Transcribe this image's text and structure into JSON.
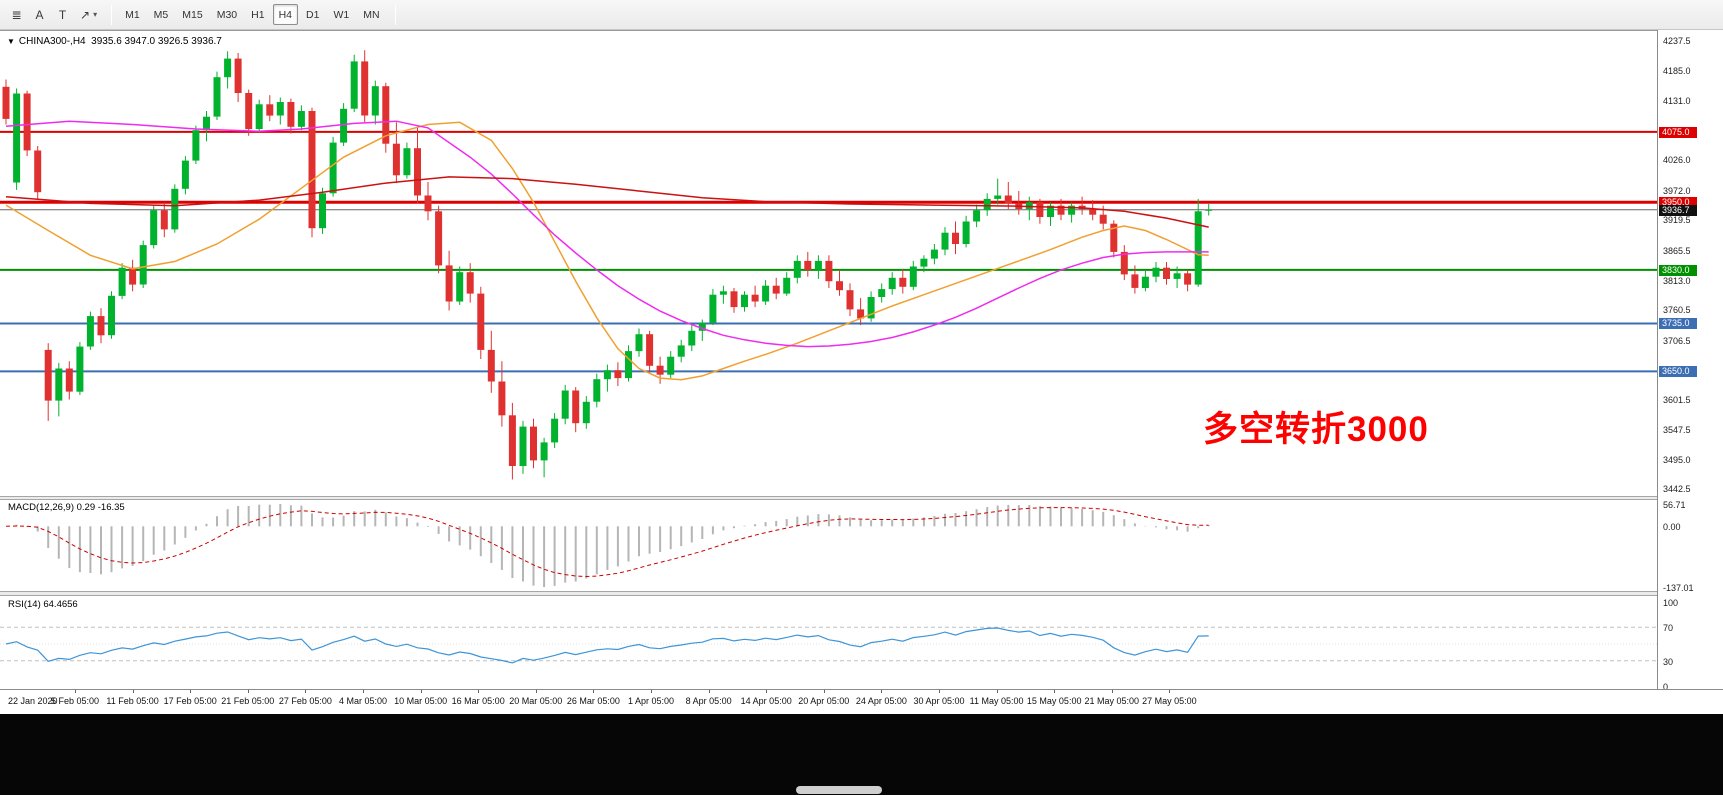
{
  "header": {
    "dropdown_glyph": "▼",
    "title": "CHINA300-,H4  3935.6 3947.0 3926.5 3936.7"
  },
  "toolbar": {
    "tools": [
      {
        "name": "charts-list",
        "glyph": "≣"
      },
      {
        "name": "text-label",
        "glyph": "A"
      },
      {
        "name": "text-frame",
        "glyph": "T"
      },
      {
        "name": "draw-object",
        "glyph": "↗",
        "dropdown": true
      }
    ],
    "dropdown_caret": "▾",
    "timeframes": [
      "M1",
      "M5",
      "M15",
      "M30",
      "H1",
      "H4",
      "D1",
      "W1",
      "MN"
    ],
    "active_timeframe": "H4"
  },
  "annotation": {
    "text": "多空转折3000",
    "color": "#ff0000"
  },
  "chart_data": {
    "type": "candlestick",
    "symbol": "CHINA300-",
    "timeframe": "H4",
    "ohlc_current": {
      "open": 3935.6,
      "high": 3947.0,
      "low": 3926.5,
      "close": 3936.7
    },
    "up_color": "#00b22d",
    "down_color": "#e03131",
    "y_ticks": [
      4237.5,
      4185.0,
      4131.0,
      4026.0,
      3972.0,
      3919.5,
      3865.5,
      3813.0,
      3760.5,
      3706.5,
      3601.5,
      3547.5,
      3495.0,
      3442.5
    ],
    "x_labels": [
      "22 Jan 2020",
      "5 Feb 05:00",
      "11 Feb 05:00",
      "17 Feb 05:00",
      "21 Feb 05:00",
      "27 Feb 05:00",
      "4 Mar 05:00",
      "10 Mar 05:00",
      "16 Mar 05:00",
      "20 Mar 05:00",
      "26 Mar 05:00",
      "1 Apr 05:00",
      "8 Apr 05:00",
      "14 Apr 05:00",
      "20 Apr 05:00",
      "24 Apr 05:00",
      "30 Apr 05:00",
      "11 May 05:00",
      "15 May 05:00",
      "21 May 05:00",
      "27 May 05:00"
    ],
    "ohlc": [
      [
        4155,
        4168,
        4088,
        4098
      ],
      [
        3985,
        4152,
        3972,
        4143
      ],
      [
        4143,
        4148,
        4032,
        4042
      ],
      [
        4042,
        4050,
        3955,
        3968
      ],
      [
        3688,
        3700,
        3562,
        3598
      ],
      [
        3598,
        3665,
        3570,
        3655
      ],
      [
        3655,
        3668,
        3600,
        3614
      ],
      [
        3614,
        3702,
        3608,
        3694
      ],
      [
        3694,
        3756,
        3688,
        3748
      ],
      [
        3748,
        3762,
        3700,
        3714
      ],
      [
        3714,
        3792,
        3708,
        3784
      ],
      [
        3784,
        3842,
        3778,
        3834
      ],
      [
        3834,
        3848,
        3792,
        3804
      ],
      [
        3804,
        3882,
        3798,
        3874
      ],
      [
        3874,
        3946,
        3868,
        3936
      ],
      [
        3936,
        3950,
        3888,
        3902
      ],
      [
        3902,
        3982,
        3896,
        3974
      ],
      [
        3974,
        4032,
        3964,
        4024
      ],
      [
        4024,
        4086,
        4018,
        4078
      ],
      [
        4078,
        4112,
        4058,
        4102
      ],
      [
        4102,
        4182,
        4096,
        4172
      ],
      [
        4172,
        4218,
        4152,
        4205
      ],
      [
        4205,
        4215,
        4128,
        4144
      ],
      [
        4144,
        4150,
        4068,
        4080
      ],
      [
        4080,
        4132,
        4074,
        4124
      ],
      [
        4124,
        4140,
        4094,
        4104
      ],
      [
        4104,
        4136,
        4088,
        4128
      ],
      [
        4128,
        4134,
        4072,
        4084
      ],
      [
        4084,
        4122,
        4078,
        4112
      ],
      [
        4112,
        4118,
        3888,
        3904
      ],
      [
        3904,
        3976,
        3894,
        3966
      ],
      [
        3966,
        4066,
        3960,
        4056
      ],
      [
        4056,
        4126,
        4050,
        4116
      ],
      [
        4116,
        4212,
        4110,
        4200
      ],
      [
        4200,
        4220,
        4092,
        4104
      ],
      [
        4104,
        4166,
        4088,
        4156
      ],
      [
        4156,
        4162,
        4038,
        4054
      ],
      [
        4054,
        4092,
        3984,
        3998
      ],
      [
        3998,
        4056,
        3992,
        4046
      ],
      [
        4046,
        4082,
        3948,
        3962
      ],
      [
        3962,
        3986,
        3918,
        3934
      ],
      [
        3934,
        3944,
        3824,
        3838
      ],
      [
        3838,
        3864,
        3758,
        3774
      ],
      [
        3774,
        3836,
        3768,
        3826
      ],
      [
        3826,
        3842,
        3772,
        3788
      ],
      [
        3788,
        3800,
        3672,
        3688
      ],
      [
        3688,
        3722,
        3612,
        3632
      ],
      [
        3632,
        3668,
        3552,
        3572
      ],
      [
        3572,
        3594,
        3458,
        3482
      ],
      [
        3482,
        3562,
        3468,
        3552
      ],
      [
        3552,
        3566,
        3478,
        3492
      ],
      [
        3492,
        3532,
        3462,
        3524
      ],
      [
        3524,
        3576,
        3514,
        3566
      ],
      [
        3566,
        3626,
        3556,
        3616
      ],
      [
        3616,
        3622,
        3542,
        3558
      ],
      [
        3558,
        3606,
        3548,
        3596
      ],
      [
        3596,
        3646,
        3586,
        3636
      ],
      [
        3636,
        3662,
        3614,
        3652
      ],
      [
        3652,
        3666,
        3624,
        3638
      ],
      [
        3638,
        3696,
        3632,
        3686
      ],
      [
        3686,
        3726,
        3676,
        3716
      ],
      [
        3716,
        3722,
        3648,
        3660
      ],
      [
        3660,
        3676,
        3628,
        3644
      ],
      [
        3644,
        3686,
        3638,
        3676
      ],
      [
        3676,
        3706,
        3666,
        3696
      ],
      [
        3696,
        3732,
        3686,
        3722
      ],
      [
        3722,
        3742,
        3704,
        3736
      ],
      [
        3736,
        3796,
        3732,
        3786
      ],
      [
        3786,
        3802,
        3770,
        3792
      ],
      [
        3792,
        3798,
        3754,
        3764
      ],
      [
        3764,
        3792,
        3756,
        3786
      ],
      [
        3786,
        3802,
        3764,
        3774
      ],
      [
        3774,
        3812,
        3768,
        3802
      ],
      [
        3802,
        3816,
        3778,
        3788
      ],
      [
        3788,
        3826,
        3784,
        3816
      ],
      [
        3816,
        3856,
        3806,
        3846
      ],
      [
        3846,
        3862,
        3818,
        3830
      ],
      [
        3830,
        3856,
        3814,
        3846
      ],
      [
        3846,
        3856,
        3798,
        3810
      ],
      [
        3810,
        3830,
        3784,
        3794
      ],
      [
        3794,
        3806,
        3748,
        3760
      ],
      [
        3760,
        3780,
        3732,
        3744
      ],
      [
        3744,
        3792,
        3738,
        3782
      ],
      [
        3782,
        3806,
        3772,
        3796
      ],
      [
        3796,
        3826,
        3786,
        3816
      ],
      [
        3816,
        3832,
        3788,
        3800
      ],
      [
        3800,
        3846,
        3794,
        3836
      ],
      [
        3836,
        3856,
        3826,
        3850
      ],
      [
        3850,
        3876,
        3840,
        3866
      ],
      [
        3866,
        3906,
        3856,
        3896
      ],
      [
        3896,
        3916,
        3858,
        3876
      ],
      [
        3876,
        3926,
        3870,
        3916
      ],
      [
        3916,
        3946,
        3906,
        3936
      ],
      [
        3936,
        3966,
        3926,
        3956
      ],
      [
        3956,
        3992,
        3946,
        3962
      ],
      [
        3962,
        3986,
        3938,
        3948
      ],
      [
        3948,
        3970,
        3928,
        3938
      ],
      [
        3938,
        3960,
        3918,
        3950
      ],
      [
        3950,
        3956,
        3912,
        3924
      ],
      [
        3924,
        3950,
        3908,
        3944
      ],
      [
        3944,
        3956,
        3918,
        3928
      ],
      [
        3928,
        3950,
        3914,
        3944
      ],
      [
        3944,
        3960,
        3928,
        3938
      ],
      [
        3938,
        3954,
        3918,
        3928
      ],
      [
        3928,
        3944,
        3902,
        3912
      ],
      [
        3912,
        3918,
        3852,
        3862
      ],
      [
        3862,
        3874,
        3812,
        3822
      ],
      [
        3822,
        3838,
        3788,
        3798
      ],
      [
        3798,
        3830,
        3792,
        3818
      ],
      [
        3818,
        3844,
        3808,
        3834
      ],
      [
        3834,
        3844,
        3804,
        3814
      ],
      [
        3814,
        3836,
        3798,
        3824
      ],
      [
        3824,
        3830,
        3792,
        3804
      ],
      [
        3804,
        3956,
        3800,
        3934
      ],
      [
        3935.6,
        3947,
        3926.5,
        3936.7
      ]
    ],
    "moving_averages": [
      {
        "name": "ma-fast-orange",
        "color": "#f0a030",
        "points": [
          [
            0,
            3945
          ],
          [
            4,
            3900
          ],
          [
            8,
            3856
          ],
          [
            12,
            3832
          ],
          [
            16,
            3845
          ],
          [
            20,
            3876
          ],
          [
            24,
            3920
          ],
          [
            28,
            3975
          ],
          [
            32,
            4030
          ],
          [
            36,
            4068
          ],
          [
            40,
            4088
          ],
          [
            43,
            4092
          ],
          [
            46,
            4060
          ],
          [
            48,
            4010
          ],
          [
            50,
            3950
          ],
          [
            52,
            3880
          ],
          [
            54,
            3810
          ],
          [
            56,
            3745
          ],
          [
            58,
            3690
          ],
          [
            60,
            3655
          ],
          [
            62,
            3638
          ],
          [
            64,
            3635
          ],
          [
            66,
            3642
          ],
          [
            68,
            3655
          ],
          [
            70,
            3668
          ],
          [
            72,
            3680
          ],
          [
            75,
            3700
          ],
          [
            78,
            3722
          ],
          [
            81,
            3744
          ],
          [
            84,
            3766
          ],
          [
            87,
            3786
          ],
          [
            90,
            3806
          ],
          [
            93,
            3826
          ],
          [
            96,
            3846
          ],
          [
            99,
            3866
          ],
          [
            102,
            3888
          ],
          [
            104,
            3900
          ],
          [
            106,
            3908
          ],
          [
            108,
            3900
          ],
          [
            110,
            3884
          ],
          [
            112,
            3866
          ],
          [
            113,
            3857
          ],
          [
            114,
            3856
          ]
        ]
      },
      {
        "name": "ma-mid-magenta",
        "color": "#ef2bef",
        "points": [
          [
            0,
            4085
          ],
          [
            6,
            4094
          ],
          [
            12,
            4088
          ],
          [
            18,
            4080
          ],
          [
            24,
            4076
          ],
          [
            28,
            4080
          ],
          [
            33,
            4090
          ],
          [
            37,
            4094
          ],
          [
            40,
            4082
          ],
          [
            44,
            4030
          ],
          [
            46,
            4000
          ],
          [
            48,
            3965
          ],
          [
            50,
            3928
          ],
          [
            52,
            3892
          ],
          [
            54,
            3860
          ],
          [
            56,
            3830
          ],
          [
            58,
            3802
          ],
          [
            60,
            3778
          ],
          [
            62,
            3757
          ],
          [
            64,
            3740
          ],
          [
            66,
            3726
          ],
          [
            68,
            3714
          ],
          [
            70,
            3706
          ],
          [
            72,
            3700
          ],
          [
            74,
            3696
          ],
          [
            76,
            3694
          ],
          [
            78,
            3695
          ],
          [
            80,
            3698
          ],
          [
            82,
            3703
          ],
          [
            84,
            3710
          ],
          [
            86,
            3720
          ],
          [
            88,
            3732
          ],
          [
            90,
            3746
          ],
          [
            92,
            3762
          ],
          [
            94,
            3780
          ],
          [
            96,
            3798
          ],
          [
            98,
            3815
          ],
          [
            100,
            3830
          ],
          [
            102,
            3842
          ],
          [
            104,
            3852
          ],
          [
            106,
            3858
          ],
          [
            108,
            3861
          ],
          [
            110,
            3862
          ],
          [
            112,
            3862
          ],
          [
            114,
            3862
          ]
        ]
      },
      {
        "name": "ma-slow-red",
        "color": "#cc1111",
        "points": [
          [
            0,
            3960
          ],
          [
            8,
            3948
          ],
          [
            16,
            3944
          ],
          [
            24,
            3954
          ],
          [
            30,
            3968
          ],
          [
            36,
            3984
          ],
          [
            42,
            3995
          ],
          [
            48,
            3992
          ],
          [
            54,
            3982
          ],
          [
            60,
            3970
          ],
          [
            66,
            3958
          ],
          [
            72,
            3951
          ],
          [
            80,
            3947
          ],
          [
            88,
            3945
          ],
          [
            96,
            3943
          ],
          [
            102,
            3940
          ],
          [
            106,
            3934
          ],
          [
            110,
            3922
          ],
          [
            114,
            3906
          ]
        ]
      }
    ],
    "horizontal_lines": [
      {
        "value": 4075.0,
        "label": "4075.0",
        "color": "#dd0000",
        "width": 2
      },
      {
        "value": 3950.0,
        "label": "3950.0",
        "color": "#dd0000",
        "width": 3
      },
      {
        "value": 3830.0,
        "label": "3830.0",
        "color": "#009100",
        "width": 2
      },
      {
        "value": 3735.0,
        "label": "3735.0",
        "color": "#3c6eb4",
        "width": 2
      },
      {
        "value": 3650.0,
        "label": "3650.0",
        "color": "#3c6eb4",
        "width": 2
      }
    ],
    "current_price": {
      "value": 3936.7,
      "label": "3936.7",
      "badge_color": "#111111"
    },
    "indicators": [
      {
        "type": "macd",
        "label": "MACD(12,26,9) 0.29 -16.35",
        "fast": 12,
        "slow": 26,
        "signal": 9,
        "main_value": 0.29,
        "signal_value": -16.35,
        "axis_labels": [
          "56.71",
          "0.00",
          "-137.01"
        ],
        "histogram_color": "#b5b5b5",
        "signal_color": "#cc0000"
      },
      {
        "type": "rsi",
        "label": "RSI(14) 64.4656",
        "period": 14,
        "value": 64.4656,
        "axis_labels": [
          "100",
          "70",
          "30",
          "0"
        ],
        "levels": [
          70,
          30
        ],
        "line_color": "#3d95d8",
        "level_color": "#bfbfbf"
      }
    ]
  }
}
